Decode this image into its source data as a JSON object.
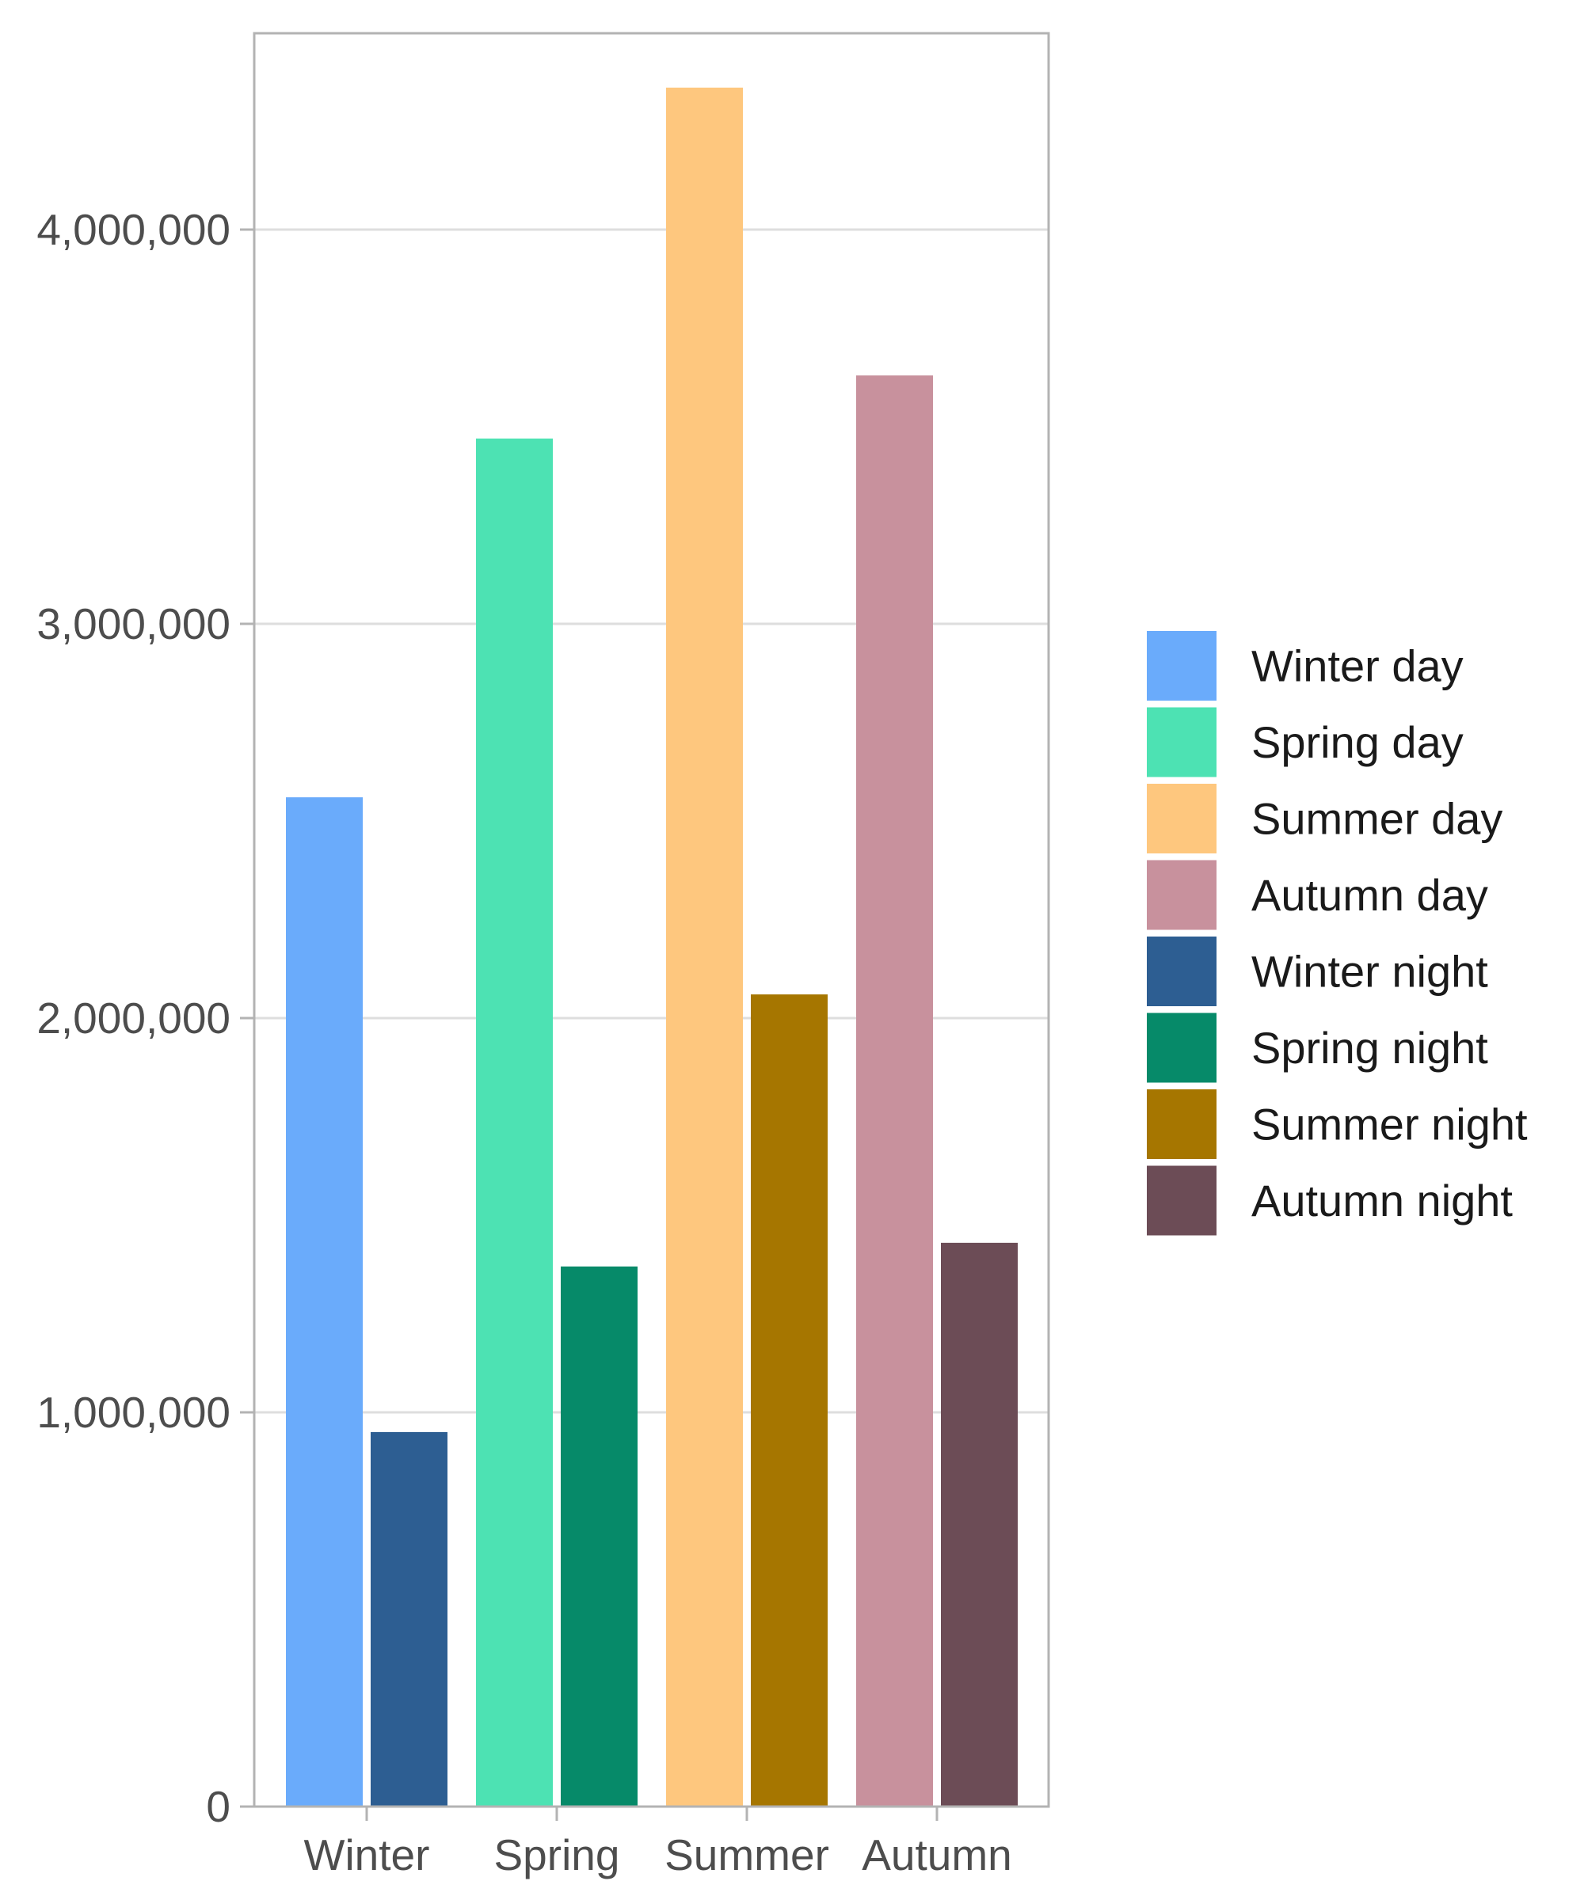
{
  "chart_data": {
    "type": "bar",
    "categories": [
      "Winter",
      "Spring",
      "Summer",
      "Autumn"
    ],
    "series": [
      {
        "name": "Day",
        "values": [
          2560000,
          3470000,
          4360000,
          3630000
        ]
      },
      {
        "name": "Night",
        "values": [
          950000,
          1370000,
          2060000,
          1430000
        ]
      }
    ],
    "bars": [
      {
        "category": "Winter",
        "series": "Day",
        "value": 2560000,
        "color": "#6aabfb"
      },
      {
        "category": "Winter",
        "series": "Night",
        "value": 950000,
        "color": "#2d5e92"
      },
      {
        "category": "Spring",
        "series": "Day",
        "value": 3470000,
        "color": "#4de2b3"
      },
      {
        "category": "Spring",
        "series": "Night",
        "value": 1370000,
        "color": "#068a69"
      },
      {
        "category": "Summer",
        "series": "Day",
        "value": 4360000,
        "color": "#fec77e"
      },
      {
        "category": "Summer",
        "series": "Night",
        "value": 2060000,
        "color": "#a67600"
      },
      {
        "category": "Autumn",
        "series": "Day",
        "value": 3630000,
        "color": "#c8919d"
      },
      {
        "category": "Autumn",
        "series": "Night",
        "value": 1430000,
        "color": "#6c4c56"
      }
    ],
    "legend": [
      {
        "label": "Winter day",
        "color": "#6aabfb"
      },
      {
        "label": "Spring day",
        "color": "#4de2b3"
      },
      {
        "label": "Summer day",
        "color": "#fec77e"
      },
      {
        "label": "Autumn day",
        "color": "#c8919d"
      },
      {
        "label": "Winter night",
        "color": "#2d5e92"
      },
      {
        "label": "Spring night",
        "color": "#068a69"
      },
      {
        "label": "Summer night",
        "color": "#a67600"
      },
      {
        "label": "Autumn night",
        "color": "#6c4c56"
      }
    ],
    "y_ticks": [
      0,
      1000000,
      2000000,
      3000000,
      4000000
    ],
    "y_tick_labels": [
      "0",
      "1,000,000",
      "2,000,000",
      "3,000,000",
      "4,000,000"
    ],
    "ylim": [
      0,
      4500000
    ],
    "title": "",
    "xlabel": "",
    "ylabel": "",
    "grid": true,
    "legend_position": "right"
  }
}
